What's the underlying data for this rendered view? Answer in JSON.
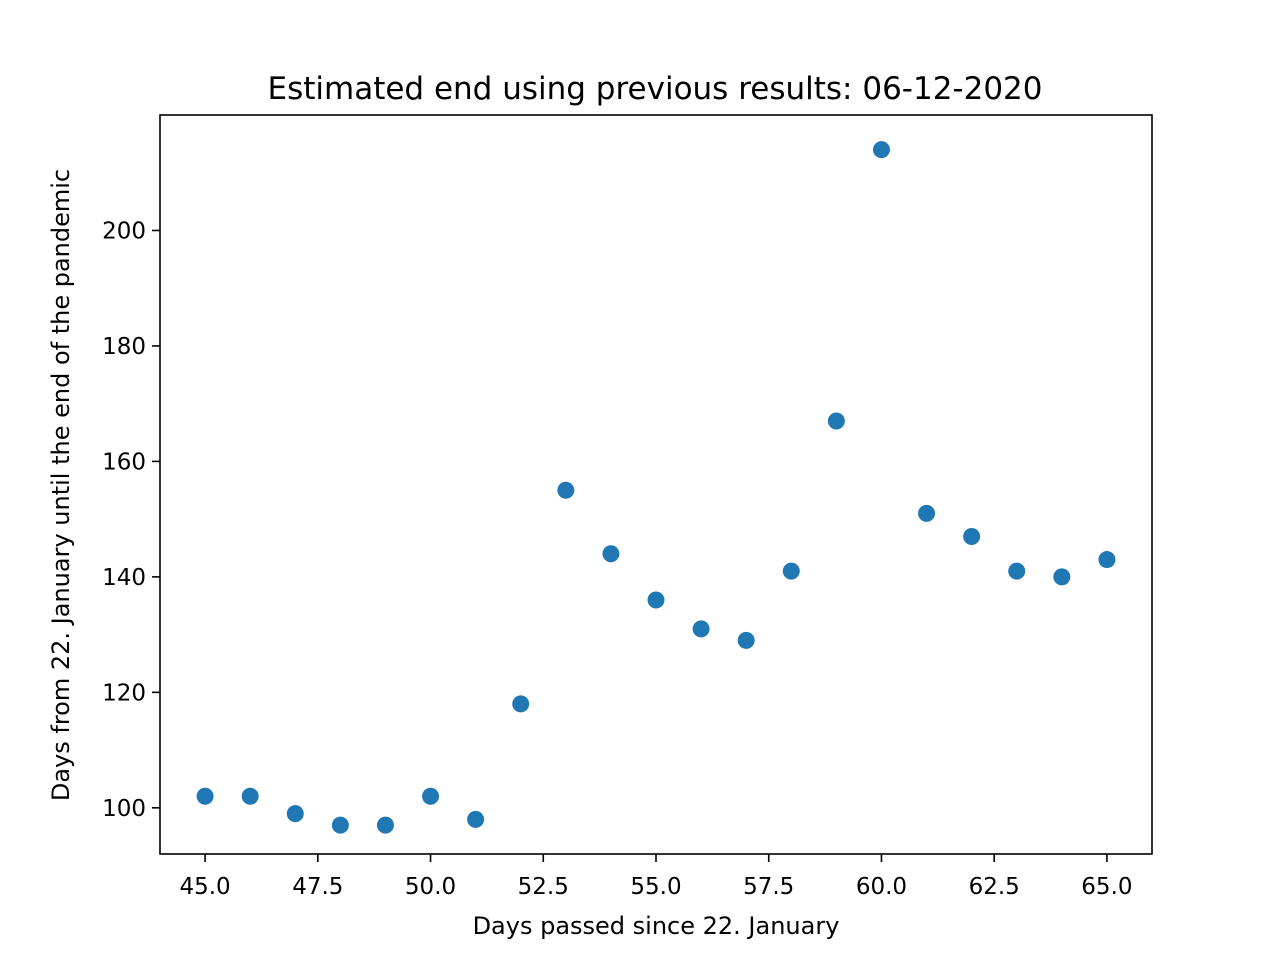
{
  "chart_data": {
    "type": "scatter",
    "title": "Estimated end using previous results: 06-12-2020",
    "xlabel": "Days passed since 22. January",
    "ylabel": "Days from 22. January until the end of the pandemic",
    "xlim": [
      44.0,
      66.0
    ],
    "ylim": [
      92.0,
      220.0
    ],
    "x_ticks": [
      "45.0",
      "47.5",
      "50.0",
      "52.5",
      "55.0",
      "57.5",
      "60.0",
      "62.5",
      "65.0"
    ],
    "y_ticks": [
      "100",
      "120",
      "140",
      "160",
      "180",
      "200"
    ],
    "grid": false,
    "color": "#1f77b4",
    "x": [
      45,
      46,
      47,
      48,
      49,
      50,
      51,
      52,
      53,
      54,
      55,
      56,
      57,
      58,
      59,
      60,
      61,
      62,
      63,
      64,
      65
    ],
    "y": [
      102,
      102,
      99,
      97,
      97,
      102,
      98,
      118,
      155,
      144,
      136,
      131,
      129,
      141,
      167,
      214,
      151,
      147,
      141,
      140,
      143
    ]
  }
}
